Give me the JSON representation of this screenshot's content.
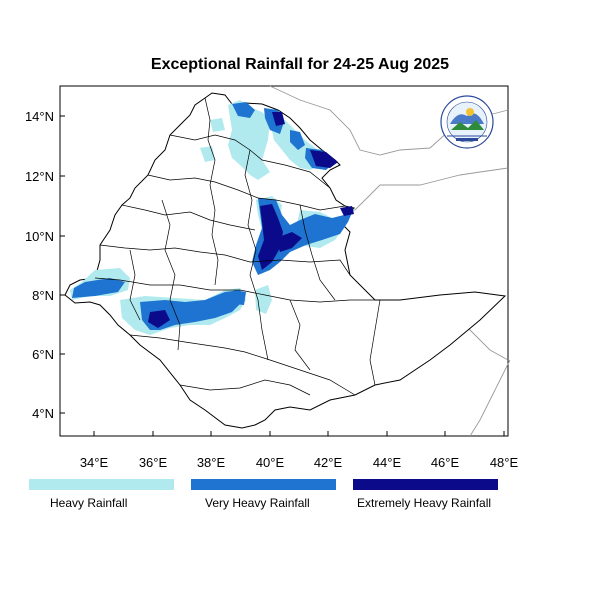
{
  "title": "Exceptional Rainfall for 24-25 Aug 2025",
  "map": {
    "x_ticks": [
      "34°E",
      "36°E",
      "38°E",
      "40°E",
      "42°E",
      "44°E",
      "46°E",
      "48°E"
    ],
    "y_ticks": [
      "14°N",
      "12°N",
      "10°N",
      "8°N",
      "6°N",
      "4°N"
    ],
    "country": "Ethiopia",
    "colors": {
      "heavy": "#b0eaee",
      "very_heavy": "#1e74d0",
      "extreme": "#0a0a8a",
      "border": "#000000",
      "neighbor": "#9a9a9a"
    }
  },
  "legend": [
    {
      "label": "Heavy Rainfall",
      "color": "#b0eaee"
    },
    {
      "label": "Very Heavy Rainfall",
      "color": "#1e74d0"
    },
    {
      "label": "Extremely Heavy Rainfall",
      "color": "#0a0a8a"
    }
  ],
  "logo": {
    "icon": "meteorology-agency-logo-icon"
  }
}
